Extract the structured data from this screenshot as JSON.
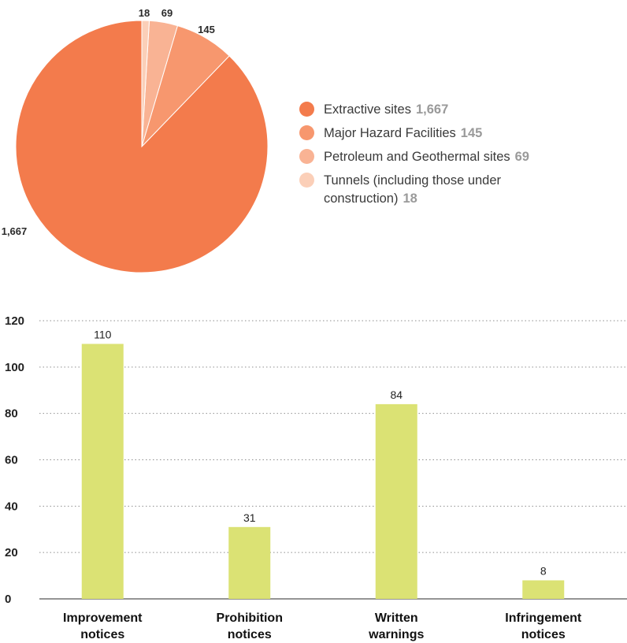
{
  "colors": {
    "pie": [
      "#f37b4c",
      "#f7976e",
      "#f9b394",
      "#fbcfb8"
    ],
    "bar": "#dbe274",
    "grid": "#8e8e8e",
    "axis": "#707070"
  },
  "chart_data": [
    {
      "type": "pie",
      "slices": [
        {
          "label": "Extractive sites",
          "value": 1667,
          "value_label": "1,667"
        },
        {
          "label": "Major Hazard Facilities",
          "value": 145,
          "value_label": "145"
        },
        {
          "label": "Petroleum and Geothermal sites",
          "value": 69,
          "value_label": "69"
        },
        {
          "label": "Tunnels (including those under construction)",
          "value": 18,
          "value_label": "18"
        }
      ],
      "legend": "right"
    },
    {
      "type": "bar",
      "categories": [
        [
          "Improvement",
          "notices"
        ],
        [
          "Prohibition",
          "notices"
        ],
        [
          "Written",
          "warnings"
        ],
        [
          "Infringement",
          "notices"
        ]
      ],
      "values": [
        110,
        31,
        84,
        8
      ],
      "ylim": [
        0,
        120
      ],
      "yticks": [
        0,
        20,
        40,
        60,
        80,
        100,
        120
      ],
      "grid": true
    }
  ]
}
